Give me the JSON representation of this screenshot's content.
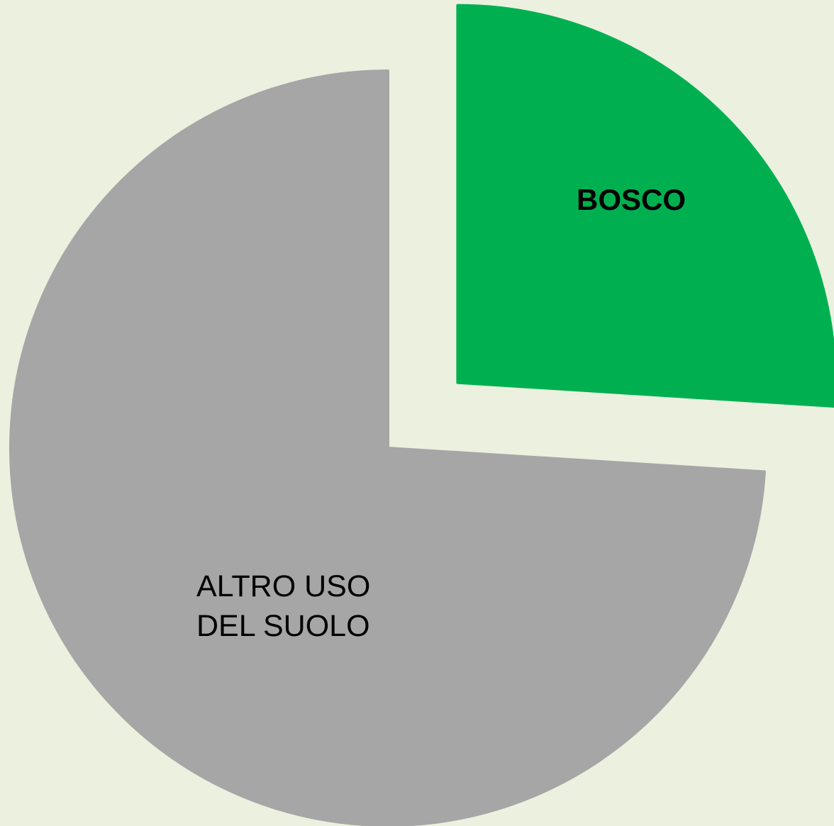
{
  "chart_data": {
    "type": "pie",
    "categories": [
      "BOSCO",
      "ALTRO USO DEL SUOLO"
    ],
    "values": [
      26,
      74
    ],
    "colors": [
      "#00b050",
      "#a6a6a6"
    ]
  }
}
